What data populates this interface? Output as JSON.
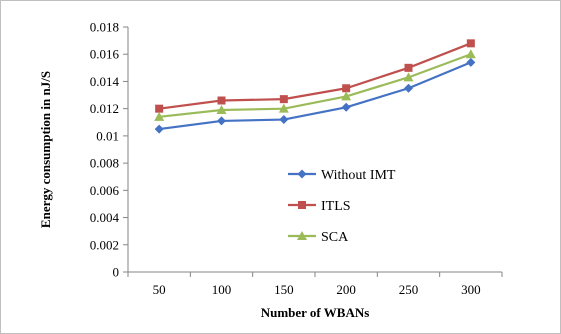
{
  "chart_data": {
    "type": "line",
    "title": "",
    "xlabel": "Number of WBANs",
    "ylabel": "Energy consumption in nJ/S",
    "categories": [
      "50",
      "100",
      "150",
      "200",
      "250",
      "300"
    ],
    "ylim": [
      0,
      0.018
    ],
    "yticks": [
      "0",
      "0.002",
      "0.004",
      "0.006",
      "0.008",
      "0.01",
      "0.012",
      "0.014",
      "0.016",
      "0.018"
    ],
    "ytick_values": [
      0,
      0.002,
      0.004,
      0.006,
      0.008,
      0.01,
      0.012,
      0.014,
      0.016,
      0.018
    ],
    "grid": false,
    "legend_position": "center-right",
    "series": [
      {
        "name": "Without IMT",
        "color": "#4472c4",
        "marker": "diamond",
        "values": [
          0.0105,
          0.0111,
          0.0112,
          0.0121,
          0.0135,
          0.0154
        ]
      },
      {
        "name": "ITLS",
        "color": "#c0504d",
        "marker": "square",
        "values": [
          0.012,
          0.0126,
          0.0127,
          0.0135,
          0.015,
          0.0168
        ]
      },
      {
        "name": "SCA",
        "color": "#9bbb59",
        "marker": "triangle",
        "values": [
          0.0114,
          0.0119,
          0.012,
          0.0129,
          0.0143,
          0.016
        ]
      }
    ]
  }
}
